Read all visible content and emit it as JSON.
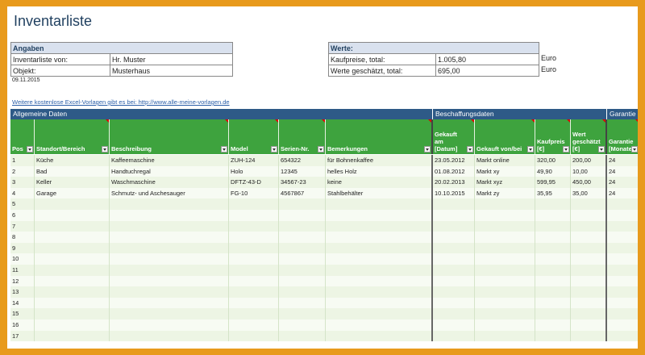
{
  "title": "Inventarliste",
  "angaben": {
    "header": "Angaben",
    "rows": [
      {
        "label": "Inventarliste von:",
        "value": "Hr. Muster"
      },
      {
        "label": "Objekt:",
        "value": "Musterhaus"
      }
    ]
  },
  "werte": {
    "header": "Werte:",
    "rows": [
      {
        "label": "Kaufpreise, total:",
        "value": "1.005,80",
        "unit": "Euro"
      },
      {
        "label": "Werte geschätzt, total:",
        "value": "695,00",
        "unit": "Euro"
      }
    ]
  },
  "date": "09.11.2015",
  "link_text": "Weitere kostenlose Excel-Vorlagen gibt es bei: http://www.alle-meine-vorlagen.de",
  "sections": [
    "Allgemeine Daten",
    "Beschaffungsdaten",
    "Garantie"
  ],
  "columns": [
    "Pos",
    "Standort/Bereich",
    "Beschreibung",
    "Model",
    "Serien-Nr.",
    "Bemerkungen",
    "Gekauft am [Datum]",
    "Gekauft von/bei",
    "Kaufpreis [€]",
    "Wert geschätzt [€]",
    "Garantie [Monate"
  ],
  "rows": [
    [
      "1",
      "Küche",
      "Kaffeemaschine",
      "ZUH-124",
      "654322",
      "für Bohnenkaffee",
      "23.05.2012",
      "Markt online",
      "320,00",
      "200,00",
      "24"
    ],
    [
      "2",
      "Bad",
      "Handtuchregal",
      "Holo",
      "12345",
      "helles Holz",
      "01.08.2012",
      "Markt xy",
      "49,90",
      "10,00",
      "24"
    ],
    [
      "3",
      "Keller",
      "Waschmaschine",
      "DFTZ-43-D",
      "34567-23",
      "keine",
      "20.02.2013",
      "Markt xyz",
      "599,95",
      "450,00",
      "24"
    ],
    [
      "4",
      "Garage",
      "Schmutz- und Aschesauger",
      "FG-10",
      "4567867",
      "Stahlbehälter",
      "10.10.2015",
      "Markt zy",
      "35,95",
      "35,00",
      "24"
    ],
    [
      "5",
      "",
      "",
      "",
      "",
      "",
      "",
      "",
      "",
      "",
      ""
    ],
    [
      "6",
      "",
      "",
      "",
      "",
      "",
      "",
      "",
      "",
      "",
      ""
    ],
    [
      "7",
      "",
      "",
      "",
      "",
      "",
      "",
      "",
      "",
      "",
      ""
    ],
    [
      "8",
      "",
      "",
      "",
      "",
      "",
      "",
      "",
      "",
      "",
      ""
    ],
    [
      "9",
      "",
      "",
      "",
      "",
      "",
      "",
      "",
      "",
      "",
      ""
    ],
    [
      "10",
      "",
      "",
      "",
      "",
      "",
      "",
      "",
      "",
      "",
      ""
    ],
    [
      "11",
      "",
      "",
      "",
      "",
      "",
      "",
      "",
      "",
      "",
      ""
    ],
    [
      "12",
      "",
      "",
      "",
      "",
      "",
      "",
      "",
      "",
      "",
      ""
    ],
    [
      "13",
      "",
      "",
      "",
      "",
      "",
      "",
      "",
      "",
      "",
      ""
    ],
    [
      "14",
      "",
      "",
      "",
      "",
      "",
      "",
      "",
      "",
      "",
      ""
    ],
    [
      "15",
      "",
      "",
      "",
      "",
      "",
      "",
      "",
      "",
      "",
      ""
    ],
    [
      "16",
      "",
      "",
      "",
      "",
      "",
      "",
      "",
      "",
      "",
      ""
    ],
    [
      "17",
      "",
      "",
      "",
      "",
      "",
      "",
      "",
      "",
      "",
      ""
    ]
  ]
}
